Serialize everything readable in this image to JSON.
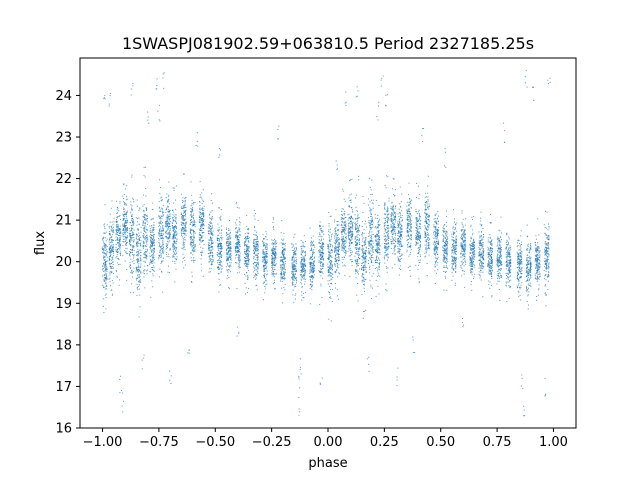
{
  "chart_data": {
    "type": "scatter",
    "title": "1SWASPJ081902.59+063810.5 Period 2327185.25s",
    "xlabel": "phase",
    "ylabel": "flux",
    "xlim": [
      -1.1,
      1.1
    ],
    "ylim": [
      16,
      24.9
    ],
    "x_ticks": [
      -1.0,
      -0.75,
      -0.5,
      -0.25,
      0.0,
      0.25,
      0.5,
      0.75,
      1.0
    ],
    "x_tick_labels": [
      "−1.00",
      "−0.75",
      "−0.50",
      "−0.25",
      "0.00",
      "0.25",
      "0.50",
      "0.75",
      "1.00"
    ],
    "y_ticks": [
      16,
      17,
      18,
      19,
      20,
      21,
      22,
      23,
      24
    ],
    "y_tick_labels": [
      "16",
      "17",
      "18",
      "19",
      "20",
      "21",
      "22",
      "23",
      "24"
    ],
    "grid": false,
    "marker_color": "#1f77b4",
    "description_of_points": "Phase-folded light curve, mirrored over phase -1 to 1; flux densely scattered around 20-21 in vertical clumps",
    "clusters": [
      {
        "x": -0.99,
        "center": 20.0,
        "spread": 0.7
      },
      {
        "x": -0.96,
        "center": 20.3,
        "spread": 0.6
      },
      {
        "x": -0.93,
        "center": 20.6,
        "spread": 0.6
      },
      {
        "x": -0.9,
        "center": 20.8,
        "spread": 0.6
      },
      {
        "x": -0.87,
        "center": 20.5,
        "spread": 0.8
      },
      {
        "x": -0.84,
        "center": 20.1,
        "spread": 0.7
      },
      {
        "x": -0.81,
        "center": 20.6,
        "spread": 0.8
      },
      {
        "x": -0.78,
        "center": 20.4,
        "spread": 0.6
      },
      {
        "x": -0.74,
        "center": 20.7,
        "spread": 0.7
      },
      {
        "x": -0.71,
        "center": 20.9,
        "spread": 0.6
      },
      {
        "x": -0.68,
        "center": 20.6,
        "spread": 0.6
      },
      {
        "x": -0.64,
        "center": 20.9,
        "spread": 0.6
      },
      {
        "x": -0.6,
        "center": 20.7,
        "spread": 0.6
      },
      {
        "x": -0.56,
        "center": 20.9,
        "spread": 0.6
      },
      {
        "x": -0.52,
        "center": 20.5,
        "spread": 0.6
      },
      {
        "x": -0.48,
        "center": 20.3,
        "spread": 0.5
      },
      {
        "x": -0.44,
        "center": 20.3,
        "spread": 0.5
      },
      {
        "x": -0.4,
        "center": 20.4,
        "spread": 0.5
      },
      {
        "x": -0.36,
        "center": 20.2,
        "spread": 0.5
      },
      {
        "x": -0.32,
        "center": 20.2,
        "spread": 0.5
      },
      {
        "x": -0.28,
        "center": 20.1,
        "spread": 0.5
      },
      {
        "x": -0.24,
        "center": 20.1,
        "spread": 0.5
      },
      {
        "x": -0.2,
        "center": 20.0,
        "spread": 0.5
      },
      {
        "x": -0.15,
        "center": 19.9,
        "spread": 0.5
      },
      {
        "x": -0.11,
        "center": 19.9,
        "spread": 0.5
      },
      {
        "x": -0.07,
        "center": 20.0,
        "spread": 0.5
      },
      {
        "x": -0.03,
        "center": 20.2,
        "spread": 0.6
      },
      {
        "x": 0.01,
        "center": 20.0,
        "spread": 0.7
      },
      {
        "x": 0.04,
        "center": 20.3,
        "spread": 0.6
      },
      {
        "x": 0.07,
        "center": 20.6,
        "spread": 0.6
      },
      {
        "x": 0.1,
        "center": 20.8,
        "spread": 0.6
      },
      {
        "x": 0.13,
        "center": 20.5,
        "spread": 0.8
      },
      {
        "x": 0.16,
        "center": 20.1,
        "spread": 0.7
      },
      {
        "x": 0.19,
        "center": 20.6,
        "spread": 0.8
      },
      {
        "x": 0.22,
        "center": 20.4,
        "spread": 0.6
      },
      {
        "x": 0.26,
        "center": 20.7,
        "spread": 0.7
      },
      {
        "x": 0.29,
        "center": 20.9,
        "spread": 0.6
      },
      {
        "x": 0.32,
        "center": 20.6,
        "spread": 0.6
      },
      {
        "x": 0.36,
        "center": 20.9,
        "spread": 0.6
      },
      {
        "x": 0.4,
        "center": 20.7,
        "spread": 0.6
      },
      {
        "x": 0.44,
        "center": 20.9,
        "spread": 0.6
      },
      {
        "x": 0.48,
        "center": 20.5,
        "spread": 0.6
      },
      {
        "x": 0.52,
        "center": 20.3,
        "spread": 0.5
      },
      {
        "x": 0.56,
        "center": 20.3,
        "spread": 0.5
      },
      {
        "x": 0.6,
        "center": 20.4,
        "spread": 0.5
      },
      {
        "x": 0.64,
        "center": 20.2,
        "spread": 0.5
      },
      {
        "x": 0.68,
        "center": 20.2,
        "spread": 0.5
      },
      {
        "x": 0.72,
        "center": 20.1,
        "spread": 0.5
      },
      {
        "x": 0.76,
        "center": 20.1,
        "spread": 0.5
      },
      {
        "x": 0.8,
        "center": 20.0,
        "spread": 0.5
      },
      {
        "x": 0.85,
        "center": 19.9,
        "spread": 0.5
      },
      {
        "x": 0.89,
        "center": 19.9,
        "spread": 0.5
      },
      {
        "x": 0.93,
        "center": 20.0,
        "spread": 0.5
      },
      {
        "x": 0.97,
        "center": 20.2,
        "spread": 0.6
      }
    ],
    "outliers": [
      [
        -0.99,
        24.0
      ],
      [
        -0.97,
        23.9
      ],
      [
        -0.92,
        17.0
      ],
      [
        -0.91,
        16.6
      ],
      [
        -0.87,
        24.2
      ],
      [
        -0.82,
        17.6
      ],
      [
        -0.8,
        23.5
      ],
      [
        -0.76,
        24.3
      ],
      [
        -0.75,
        23.6
      ],
      [
        -0.73,
        24.4
      ],
      [
        -0.7,
        17.3
      ],
      [
        -0.62,
        18.0
      ],
      [
        -0.58,
        23.0
      ],
      [
        -0.48,
        22.5
      ],
      [
        -0.4,
        18.4
      ],
      [
        -0.22,
        23.1
      ],
      [
        -0.13,
        17.2
      ],
      [
        -0.13,
        16.5
      ],
      [
        -0.12,
        17.5
      ],
      [
        -0.03,
        17.0
      ],
      [
        0.04,
        22.3
      ],
      [
        0.08,
        24.0
      ],
      [
        0.13,
        24.1
      ],
      [
        0.18,
        17.5
      ],
      [
        0.22,
        23.6
      ],
      [
        0.24,
        24.3
      ],
      [
        0.26,
        23.8
      ],
      [
        0.31,
        17.2
      ],
      [
        0.38,
        18.0
      ],
      [
        0.42,
        23.0
      ],
      [
        0.52,
        22.5
      ],
      [
        0.6,
        18.4
      ],
      [
        0.78,
        23.1
      ],
      [
        0.86,
        17.2
      ],
      [
        0.87,
        16.5
      ],
      [
        0.88,
        24.4
      ],
      [
        0.91,
        24.1
      ],
      [
        0.96,
        17.0
      ],
      [
        0.98,
        24.3
      ]
    ]
  }
}
